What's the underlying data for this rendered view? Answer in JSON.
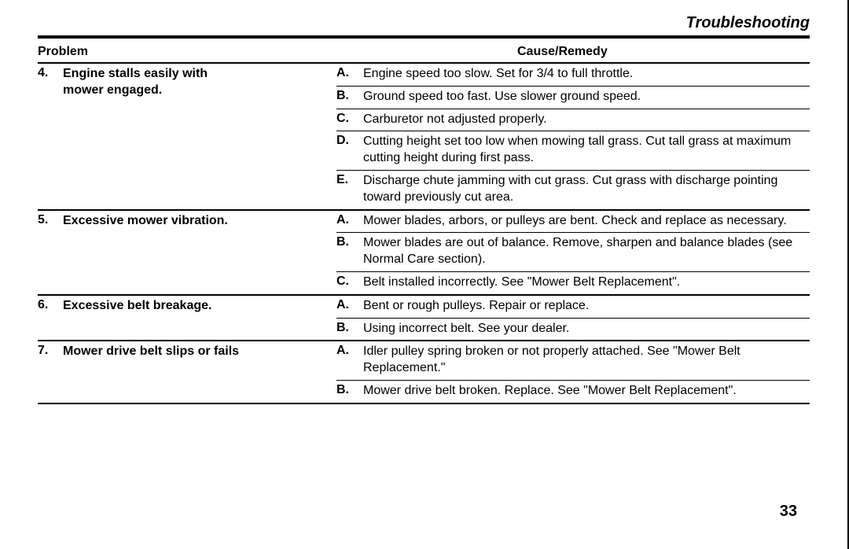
{
  "title": "Troubleshooting",
  "headers": {
    "problem": "Problem",
    "cause": "Cause/Remedy"
  },
  "page_number": "33",
  "sections": [
    {
      "num": "4.",
      "problem_l1": "Engine stalls easily with",
      "problem_l2": "mower engaged.",
      "causes": [
        {
          "letter": "A.",
          "text": "Engine speed too slow. Set for 3/4 to full throttle.",
          "underlined": true
        },
        {
          "letter": "B.",
          "text": "Ground speed too fast. Use slower ground speed.",
          "underlined": true
        },
        {
          "letter": "C.",
          "text": "Carburetor not adjusted properly.",
          "underlined": true
        },
        {
          "letter": "D.",
          "text": "Cutting height set too low when mowing tall grass. Cut tall grass at maximum cutting height during first pass.",
          "underlined": true
        },
        {
          "letter": "E.",
          "text": "Discharge chute jamming with cut grass. Cut grass with discharge pointing toward previously cut area.",
          "underlined": false
        }
      ]
    },
    {
      "num": "5.",
      "problem_l1": "Excessive mower vibration.",
      "problem_l2": "",
      "causes": [
        {
          "letter": "A.",
          "text": "Mower blades, arbors, or pulleys are bent. Check and replace as necessary.",
          "underlined": true
        },
        {
          "letter": "B.",
          "text": "Mower blades are out of balance. Remove, sharpen and balance blades (see Normal Care section).",
          "underlined": true
        },
        {
          "letter": "C.",
          "text": "Belt installed incorrectly. See \"Mower Belt Replacement\".",
          "underlined": false
        }
      ]
    },
    {
      "num": "6.",
      "problem_l1": "Excessive belt breakage.",
      "problem_l2": "",
      "causes": [
        {
          "letter": "A.",
          "text": "Bent or rough pulleys. Repair or replace.",
          "underlined": true
        },
        {
          "letter": "B.",
          "text": "Using incorrect belt. See your dealer.",
          "underlined": false
        }
      ]
    },
    {
      "num": "7.",
      "problem_l1": "Mower drive belt slips or fails",
      "problem_l2": "",
      "causes": [
        {
          "letter": "A.",
          "text": "Idler pulley spring broken or not properly attached. See \"Mower Belt Replacement.\"",
          "underlined": true
        },
        {
          "letter": "B.",
          "text": "Mower drive belt broken. Replace. See \"Mower Belt Replacement\".",
          "underlined": false
        }
      ]
    }
  ]
}
